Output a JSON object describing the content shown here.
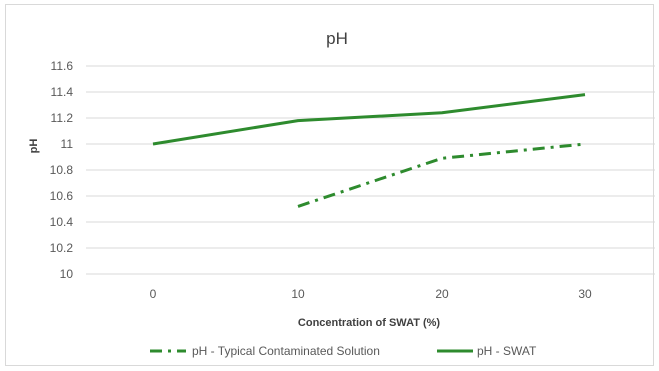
{
  "chart_data": {
    "type": "line",
    "title": "pH",
    "xlabel": "Concentration of SWAT (%)",
    "ylabel": "pH",
    "x": [
      0,
      10,
      20,
      30
    ],
    "x_tick_labels": [
      "0",
      "10",
      "20",
      "30"
    ],
    "ylim": [
      10,
      11.6
    ],
    "y_tick_labels": [
      "10",
      "10.2",
      "10.4",
      "10.6",
      "10.8",
      "11",
      "11.2",
      "11.4",
      "11.6"
    ],
    "grid": true,
    "legend_position": "bottom",
    "series": [
      {
        "name": "pH - Typical Contaminated Solution",
        "values": [
          null,
          10.52,
          10.89,
          11.0
        ],
        "color": "#2e8b2e",
        "style": "dash-dot"
      },
      {
        "name": "pH - SWAT",
        "values": [
          11.0,
          11.18,
          11.24,
          11.38
        ],
        "color": "#2e8b2e",
        "style": "solid"
      }
    ]
  }
}
